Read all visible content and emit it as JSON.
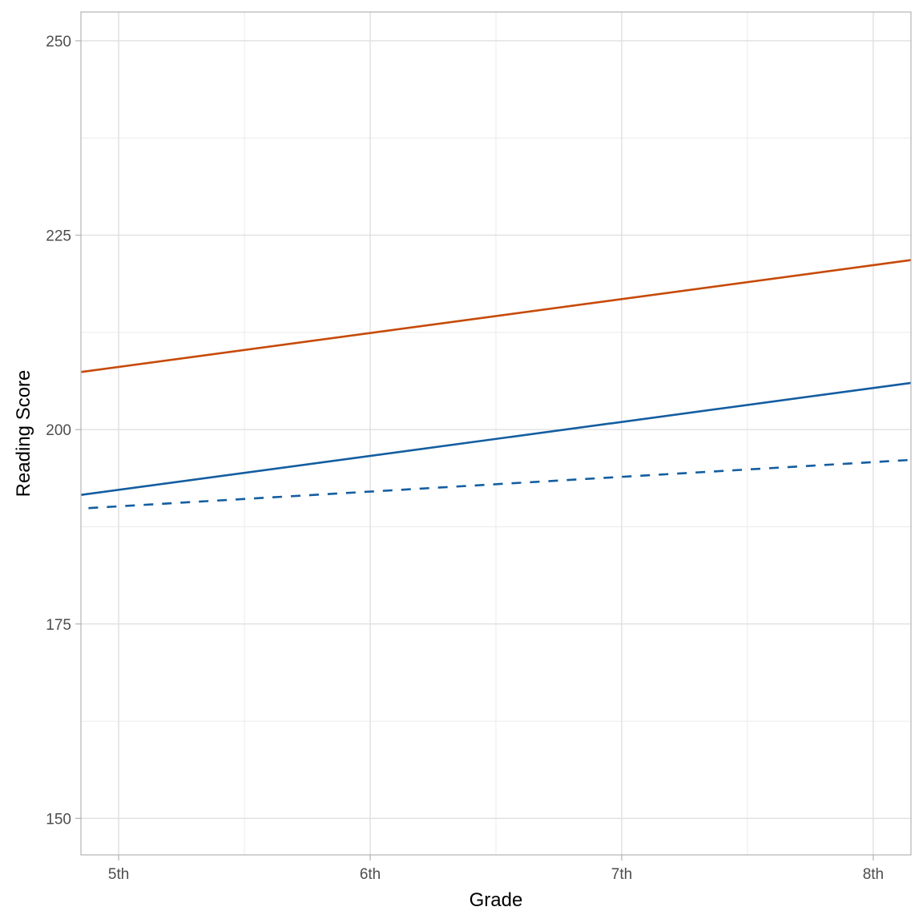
{
  "chart_data": {
    "type": "line",
    "title": "",
    "xlabel": "Grade",
    "ylabel": "Reading Score",
    "categories": [
      "5th",
      "6th",
      "7th",
      "8th"
    ],
    "x": [
      5,
      6,
      7,
      8
    ],
    "xlim": [
      4.85,
      8.15
    ],
    "ylim": [
      145.3,
      253.7
    ],
    "yticks": [
      150,
      175,
      200,
      225,
      250
    ],
    "grid": true,
    "legend": "none",
    "series": [
      {
        "name": "orange-solid",
        "color": "#C64A08",
        "linestyle": "solid",
        "values": [
          208.1,
          212.4,
          216.7,
          221.2
        ],
        "x_start": 4.85,
        "y_start": 207.4,
        "x_end": 8.15,
        "y_end": 221.8
      },
      {
        "name": "blue-solid",
        "color": "#135DA0",
        "linestyle": "solid",
        "values": [
          192.3,
          196.6,
          200.9,
          205.9
        ],
        "x_start": 4.85,
        "y_start": 191.6,
        "x_end": 8.15,
        "y_end": 206.0
      },
      {
        "name": "blue-dashed",
        "color": "#135DA0",
        "linestyle": "dashed",
        "values": [
          190.2,
          192.0,
          193.9,
          195.9
        ],
        "x_start": 4.88,
        "y_start": 189.9,
        "x_end": 8.15,
        "y_end": 196.1
      }
    ]
  },
  "axes": {
    "x_title": "Grade",
    "y_title": "Reading Score",
    "x_ticks": [
      "5th",
      "6th",
      "7th",
      "8th"
    ],
    "y_ticks": [
      "150",
      "175",
      "200",
      "225",
      "250"
    ]
  }
}
